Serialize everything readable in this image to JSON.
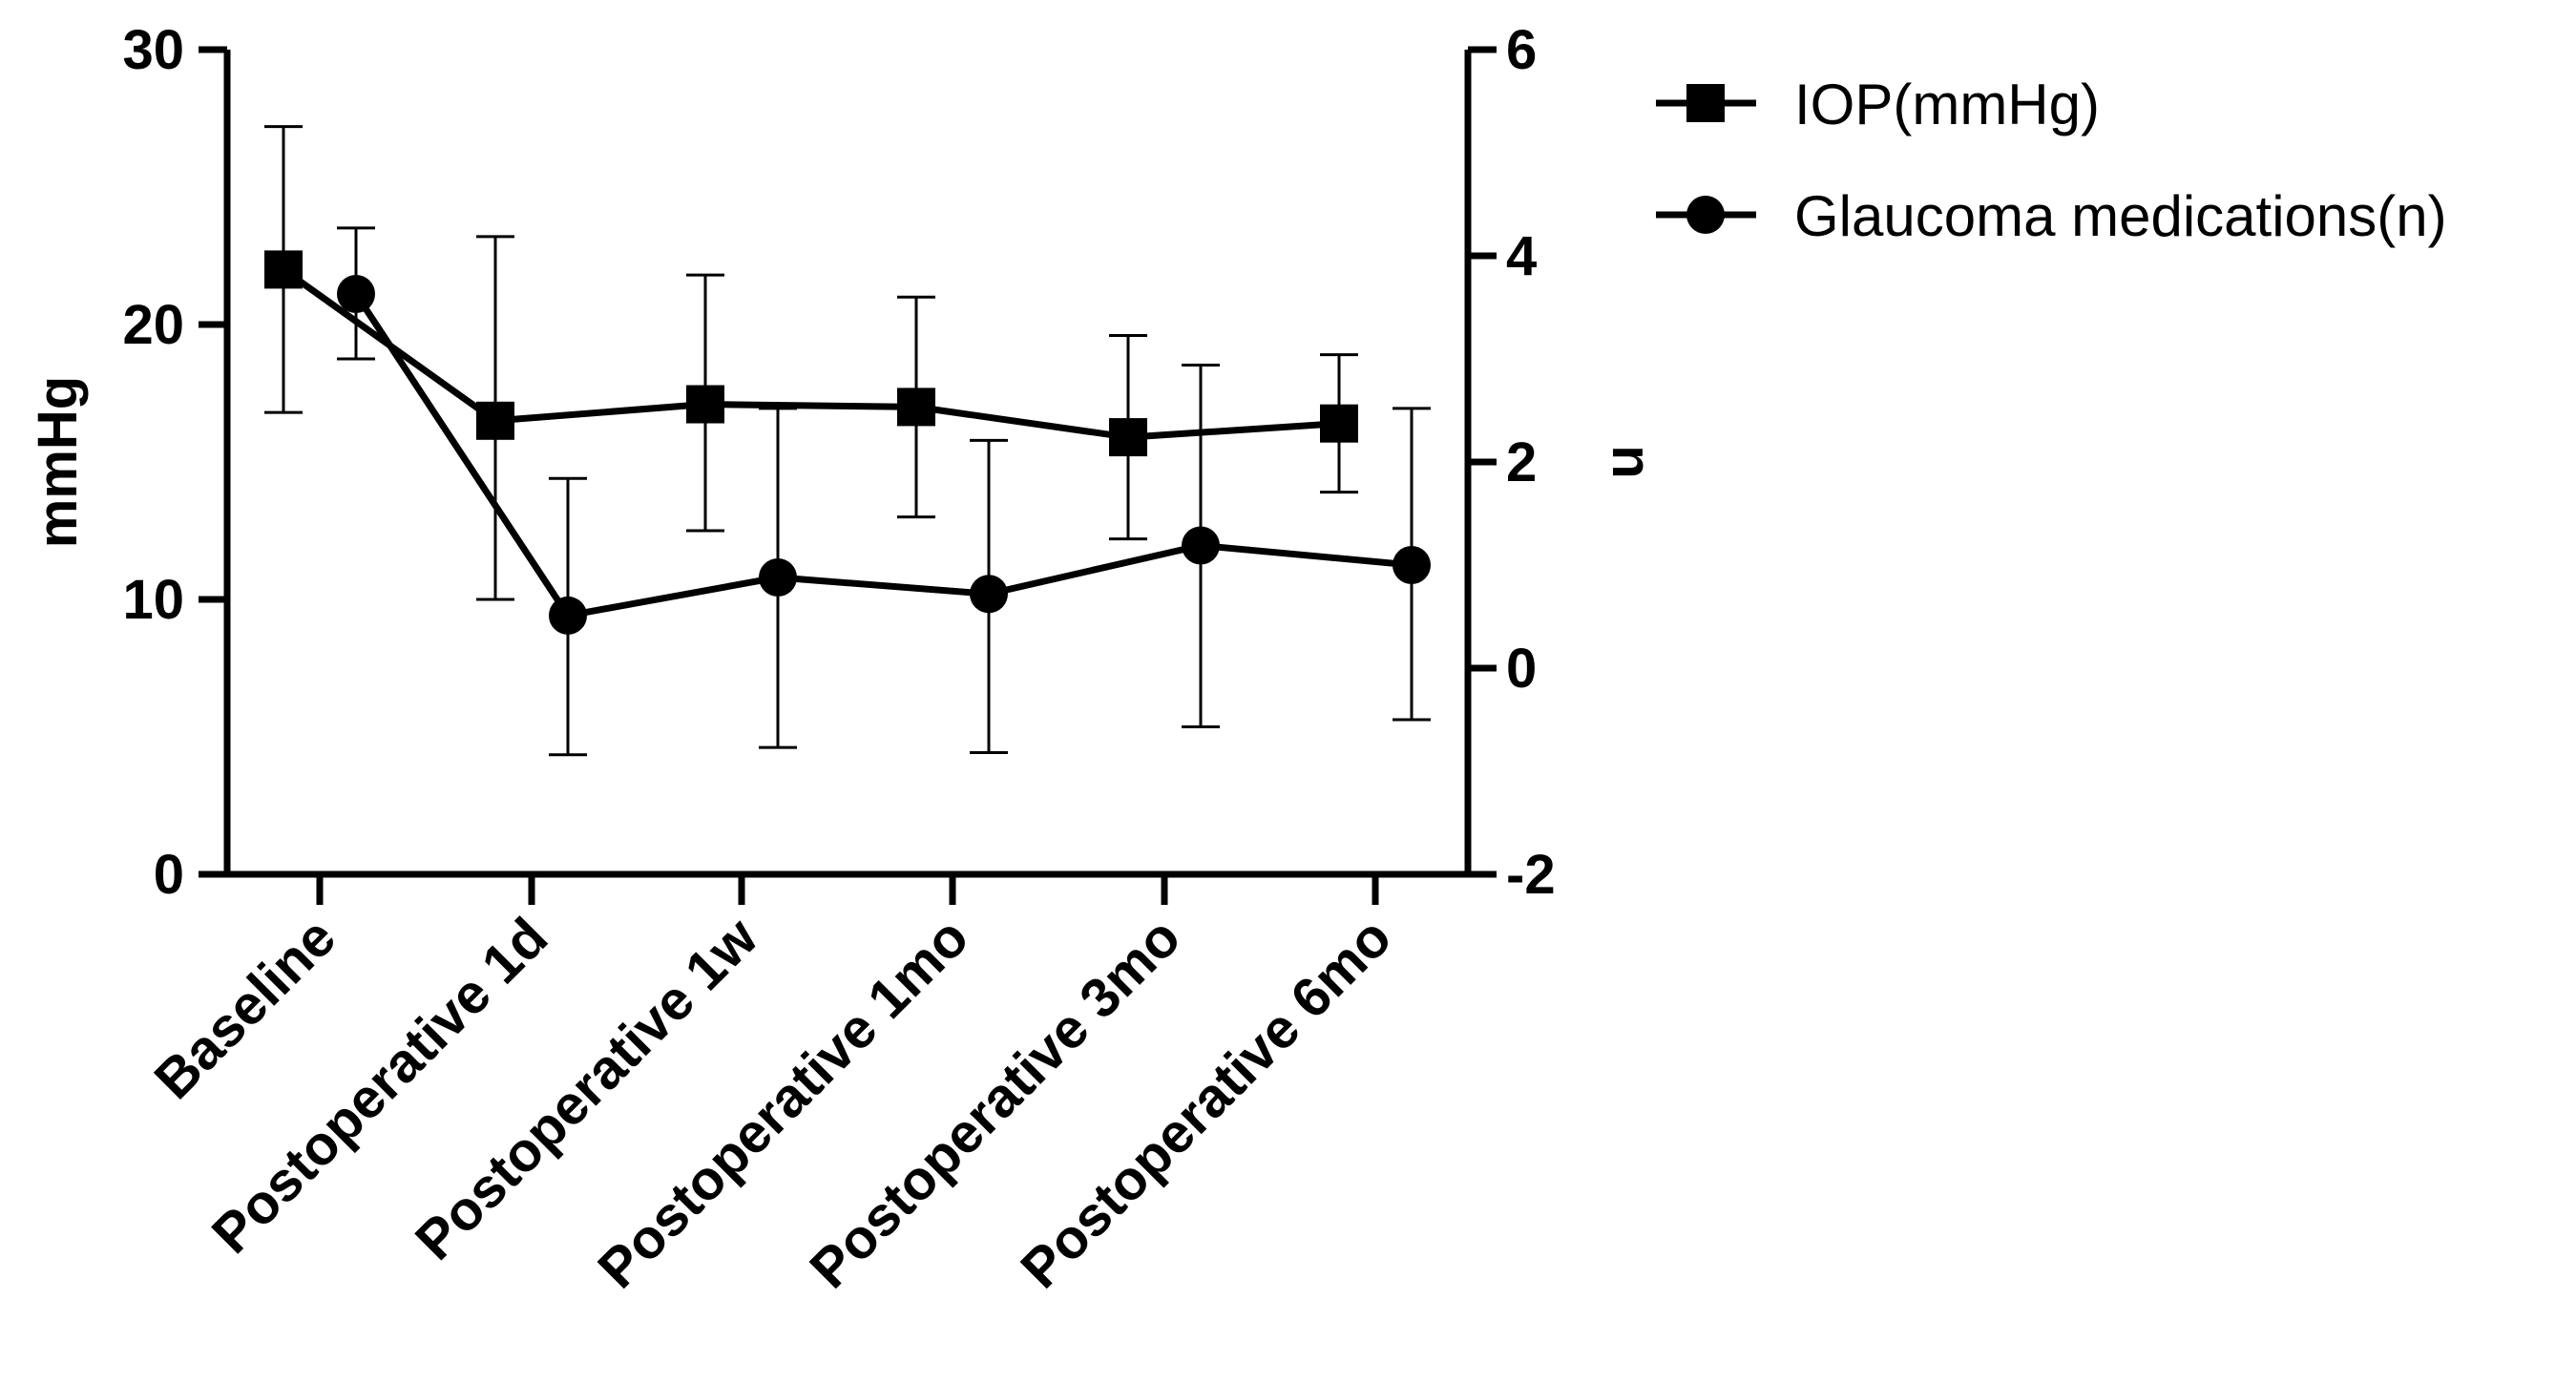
{
  "chart_data": {
    "type": "line",
    "categories": [
      "Baseline",
      "Postoperative 1d",
      "Postoperative 1w",
      "Postoperative 1mo",
      "Postoperative 3mo",
      "Postoperative 6mo"
    ],
    "left_axis": {
      "label": "mmHg",
      "ylim": [
        0,
        30
      ],
      "ticks": [
        0,
        10,
        20,
        30
      ]
    },
    "right_axis": {
      "label": "n",
      "ylim": [
        -2,
        6
      ],
      "ticks": [
        -2,
        0,
        2,
        4,
        6
      ]
    },
    "series": [
      {
        "name": "IOP(mmHg)",
        "axis": "left",
        "marker": "square",
        "values": [
          22.0,
          16.5,
          17.1,
          17.0,
          15.9,
          16.4
        ],
        "error_low": [
          16.8,
          10.0,
          12.5,
          13.0,
          12.2,
          13.9
        ],
        "error_high": [
          27.2,
          23.2,
          21.8,
          21.0,
          19.6,
          18.9
        ]
      },
      {
        "name": "Glaucoma medications(n)",
        "axis": "right",
        "marker": "circle",
        "values": [
          3.63,
          0.51,
          0.88,
          0.72,
          1.19,
          1.0
        ],
        "error_low": [
          3.0,
          -0.84,
          -0.77,
          -0.82,
          -0.57,
          -0.5
        ],
        "error_high": [
          4.27,
          1.84,
          2.52,
          2.21,
          2.94,
          2.52
        ]
      }
    ],
    "legend": [
      "IOP(mmHg)",
      "Glaucoma medications(n)"
    ],
    "grid": false,
    "legend_position": "top-right"
  }
}
